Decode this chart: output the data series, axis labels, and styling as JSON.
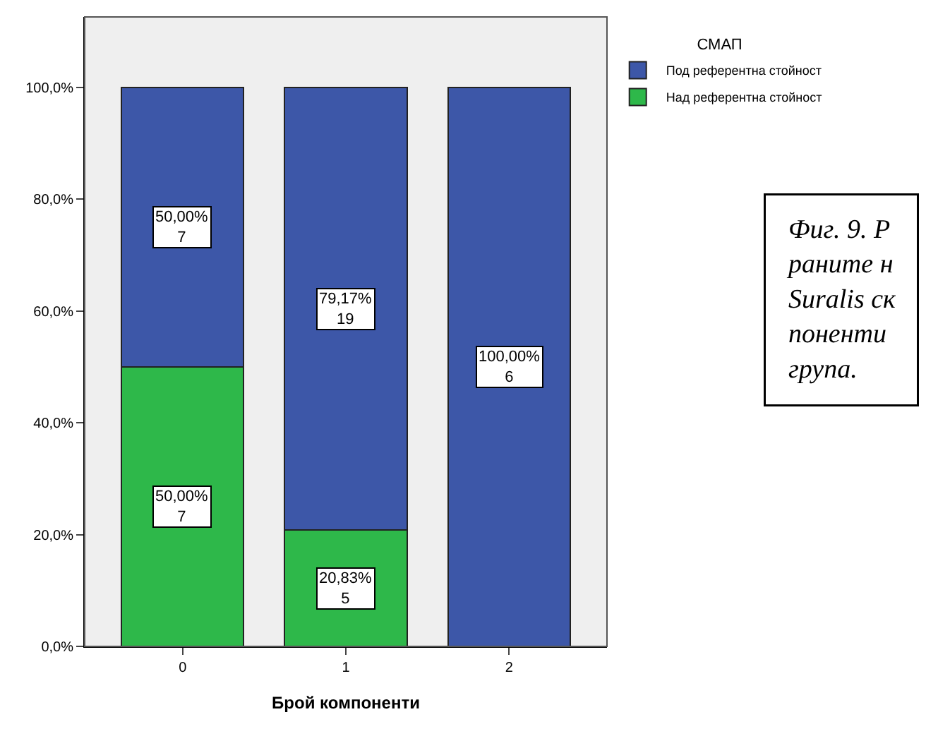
{
  "chart_data": {
    "type": "bar",
    "stacked": true,
    "xlabel": "Брой компоненти",
    "legend_title": "СМАП",
    "legend": "top right",
    "categories": [
      "0",
      "1",
      "2"
    ],
    "series": [
      {
        "name": "Над референтна стойност",
        "color": "#2eb84a",
        "values": [
          50,
          20.83,
          0
        ],
        "value_labels": [
          "50,00%\n7",
          "20,83%\n5",
          null
        ]
      },
      {
        "name": "Под референтна стойност",
        "color": "#3d57a8",
        "values": [
          50,
          79.17,
          100
        ],
        "value_labels": [
          "50,00%\n7",
          "79,17%\n19",
          "100,00%\n6"
        ]
      }
    ],
    "ylim": [
      0,
      112.6
    ],
    "yticks": [
      {
        "value": 0,
        "label": "0,0%"
      },
      {
        "value": 20,
        "label": "20,0%"
      },
      {
        "value": 40,
        "label": "40,0%"
      },
      {
        "value": 60,
        "label": "60,0%"
      },
      {
        "value": 80,
        "label": "80,0%"
      },
      {
        "value": 100,
        "label": "100,0%"
      }
    ],
    "grid": false,
    "annotations": [
      "Фиг. 9. Р\nраните н\nSuralis ск\nпоненти\nгрупа."
    ]
  }
}
